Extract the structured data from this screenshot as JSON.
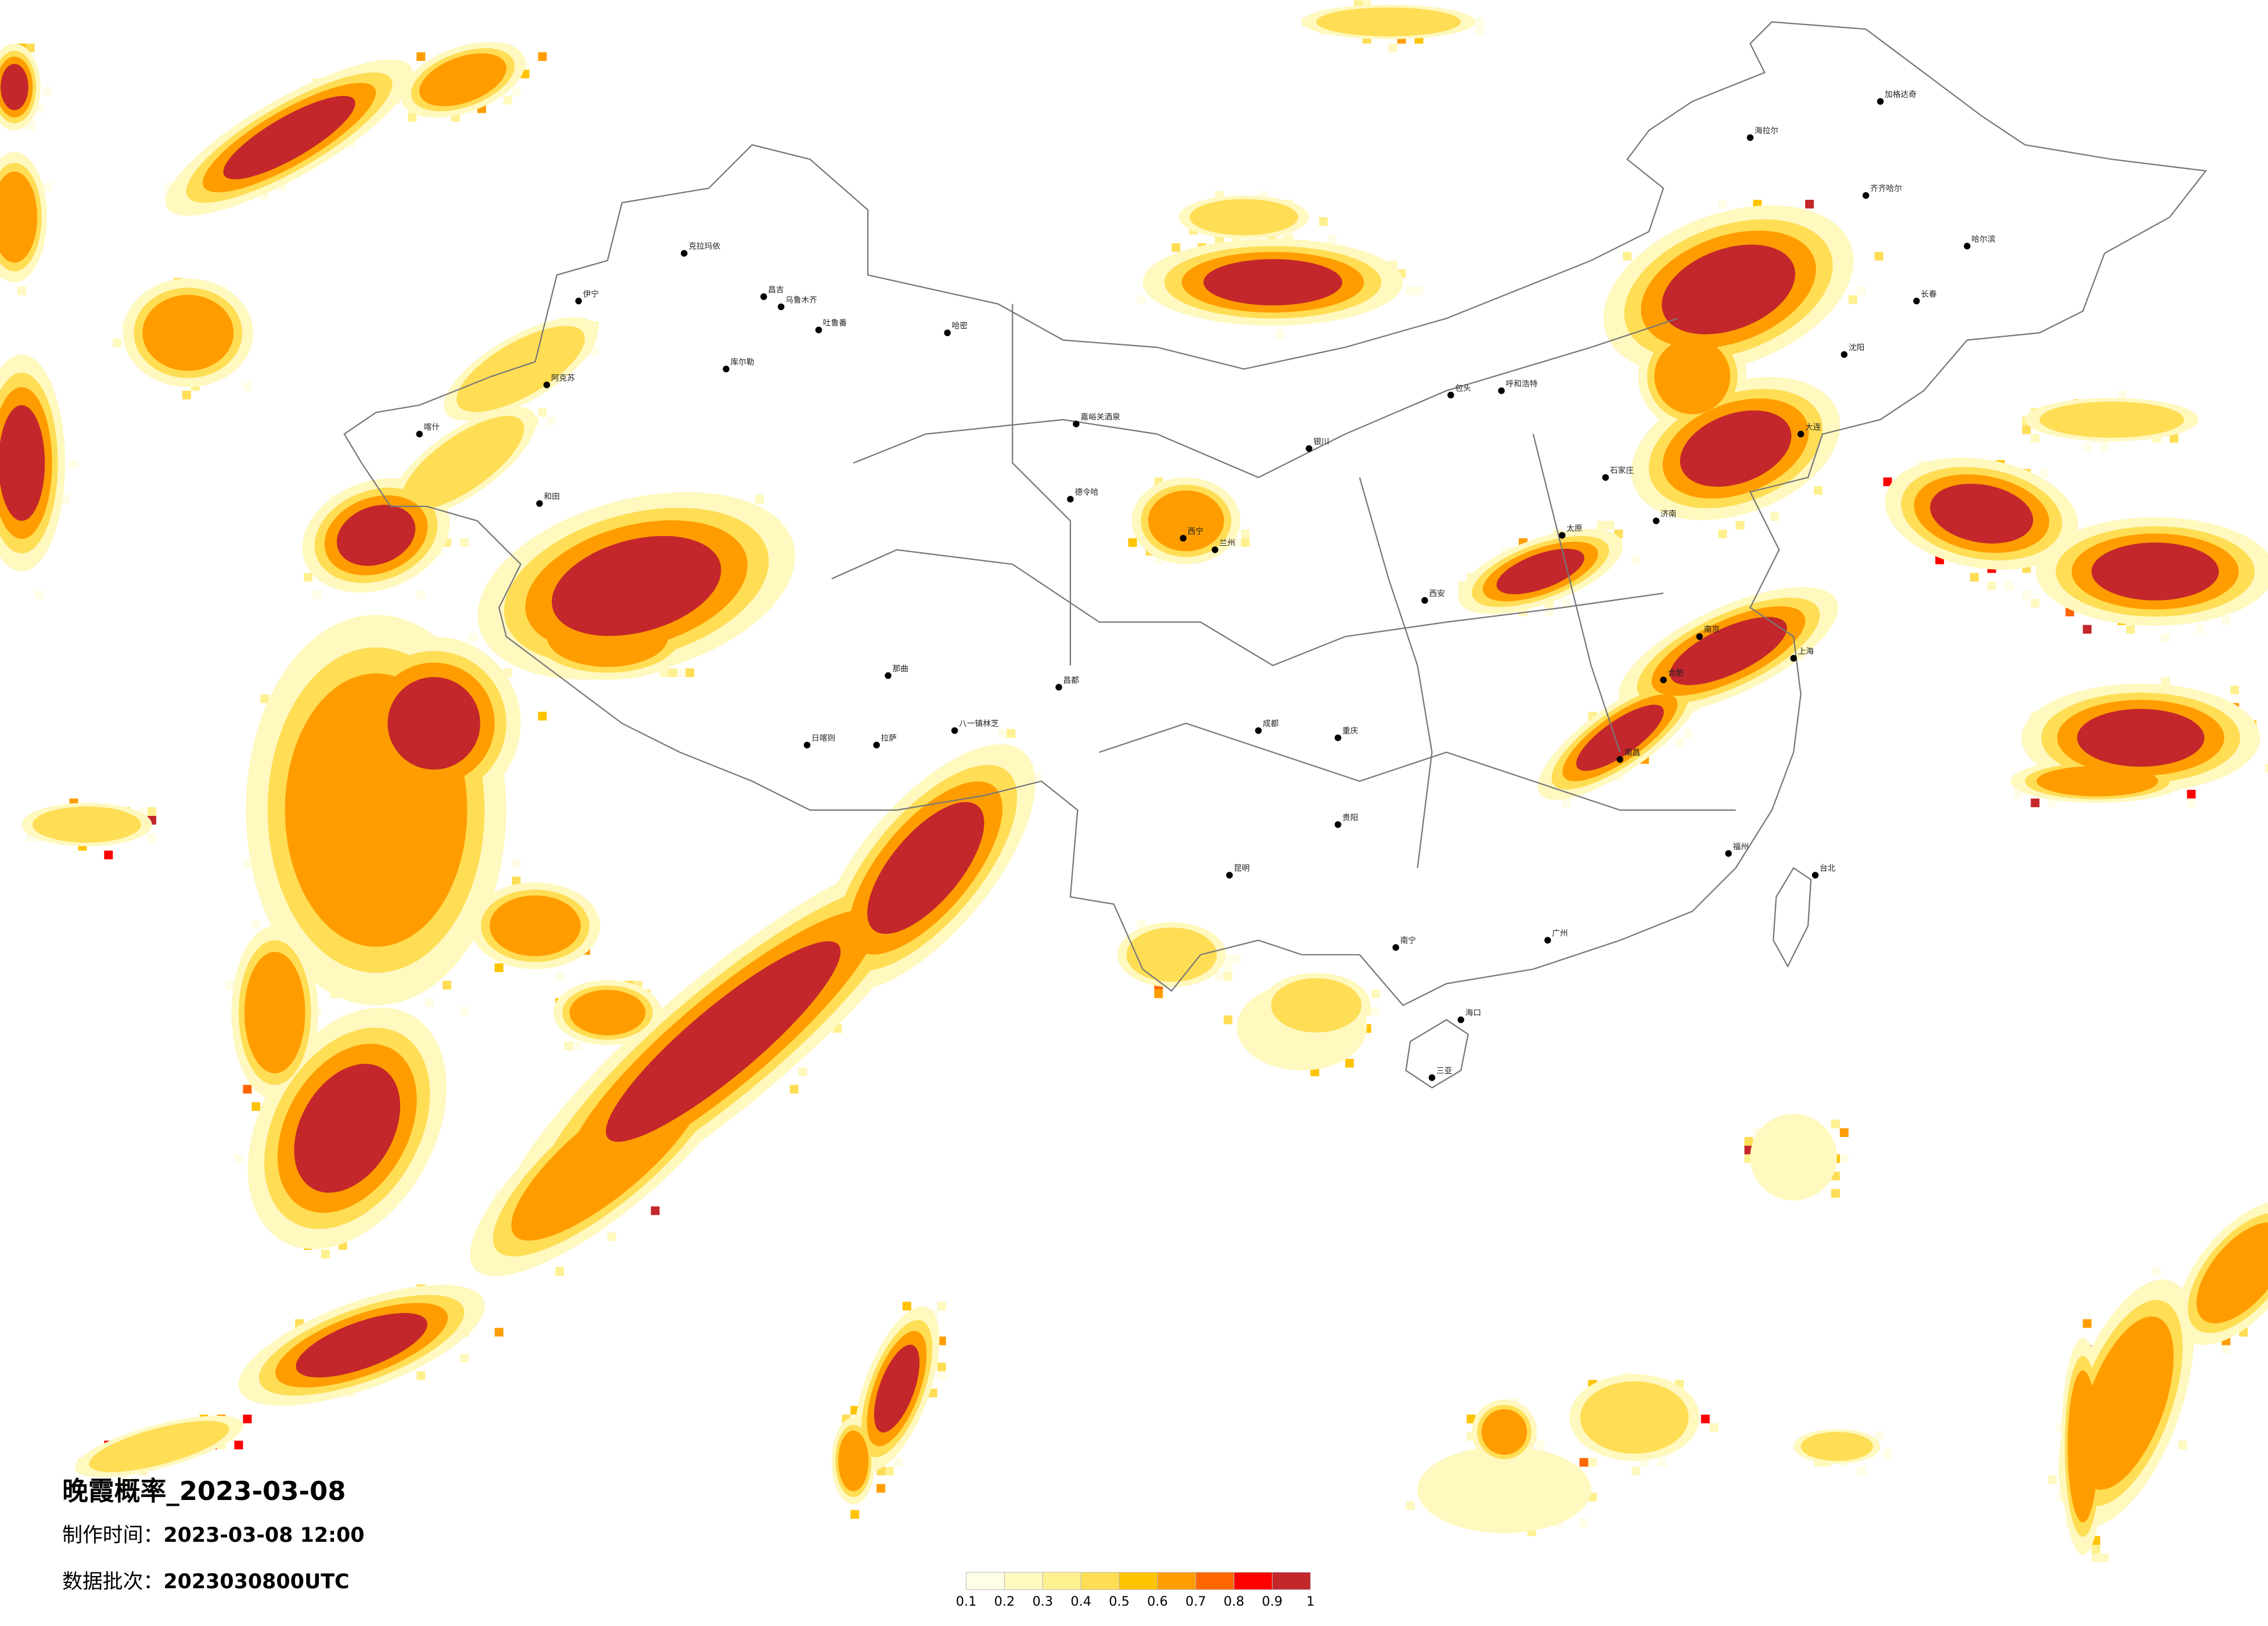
{
  "title": "晚霞概率_2023-03-08",
  "info": [
    {
      "label": "制作时间：",
      "value": "2023-03-08 12:00"
    },
    {
      "label": "数据批次：",
      "value": "2023030800UTC"
    }
  ],
  "legend": {
    "colors": [
      "#fffde6",
      "#fff8bf",
      "#fff08f",
      "#ffdd55",
      "#ffc300",
      "#ff9d00",
      "#ff6600",
      "#ff0000",
      "#c3272b"
    ],
    "ticks": [
      0.1,
      0.2,
      0.3,
      0.4,
      0.5,
      0.6,
      0.7,
      0.8,
      0.9,
      1
    ]
  },
  "cities": [
    "克拉玛依",
    "伊宁",
    "昌吉",
    "乌鲁木齐",
    "吐鲁番",
    "哈密",
    "库尔勒",
    "阿克苏",
    "喀什",
    "和田",
    "嘉峪关酒泉",
    "德令哈",
    "那曲",
    "拉萨",
    "日喀则",
    "八一镇林芝",
    "昌都",
    "西宁",
    "兰州",
    "银川",
    "包头",
    "呼和浩特",
    "石家庄",
    "太原",
    "济南",
    "西安",
    "成都",
    "重庆",
    "贵阳",
    "昆明",
    "南宁",
    "广州",
    "南昌",
    "福州",
    "上海",
    "南京",
    "合肥",
    "哈尔滨",
    "长春",
    "沈阳",
    "大连",
    "齐齐哈尔",
    "海拉尔",
    "加格达奇",
    "台北",
    "海口",
    "三亚"
  ]
}
